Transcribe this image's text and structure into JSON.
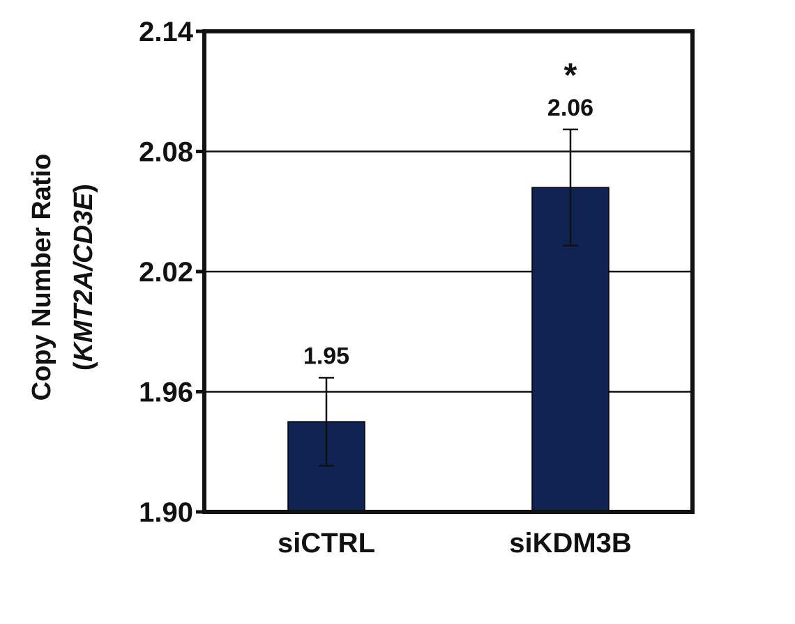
{
  "chart_data": {
    "type": "bar",
    "categories": [
      "siCTRL",
      "siKDM3B"
    ],
    "series": [
      {
        "values": [
          1.945,
          2.062
        ],
        "errors": [
          0.022,
          0.029
        ],
        "data_labels": [
          "1.95",
          "2.06"
        ],
        "annotations": [
          "",
          "*"
        ]
      }
    ],
    "ylabel_line1": "Copy Number Ratio",
    "ylabel_line2_open": "(",
    "ylabel_line2_italic": "KMT2A/CD3E",
    "ylabel_line2_close": ")",
    "ylim": [
      1.9,
      2.14
    ],
    "yticks": [
      1.9,
      1.96,
      2.02,
      2.08,
      2.14
    ],
    "ytick_labels": [
      "1.90",
      "1.96",
      "2.02",
      "2.08",
      "2.14"
    ],
    "grid": true,
    "colors": {
      "bar": "#0f2452",
      "axis": "#111111",
      "grid": "#111111"
    }
  }
}
